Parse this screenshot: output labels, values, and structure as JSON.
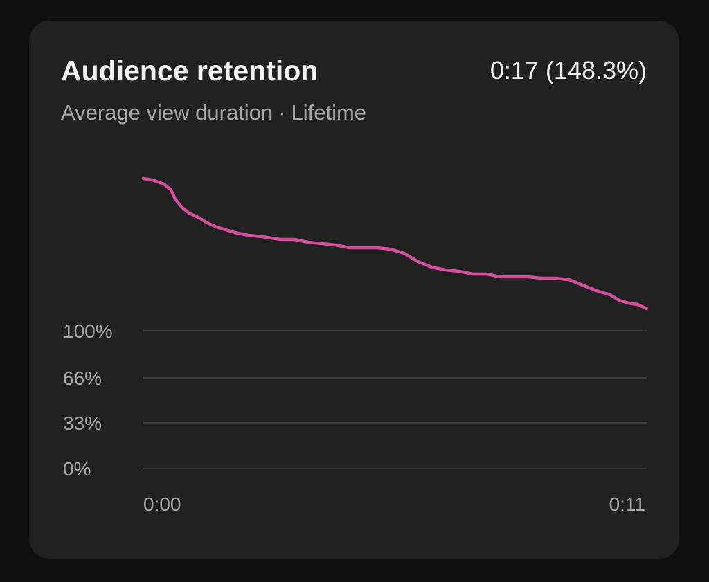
{
  "header": {
    "title": "Audience retention",
    "metric": "0:17 (148.3%)",
    "subtitle_metric": "Average view duration",
    "subtitle_separator": "·",
    "subtitle_period": "Lifetime"
  },
  "colors": {
    "line": "#d44f9e",
    "grid": "#3d3d3d",
    "card": "#212121",
    "background": "#0f0f0f"
  },
  "chart_data": {
    "type": "line",
    "title": "Audience retention",
    "ylabel": "",
    "xlabel": "",
    "y_ticks": [
      {
        "label": "100%",
        "value": 100
      },
      {
        "label": "66%",
        "value": 66
      },
      {
        "label": "33%",
        "value": 33
      },
      {
        "label": "0%",
        "value": 0
      }
    ],
    "x_ticks": [
      {
        "label": "0:00",
        "value": 0
      },
      {
        "label": "0:11",
        "value": 11
      }
    ],
    "xlim": [
      0,
      11
    ],
    "ylim": [
      0,
      210
    ],
    "grid": true,
    "series": [
      {
        "x": [
          0,
          0.2,
          0.45,
          0.6,
          0.7,
          0.85,
          1.0,
          1.2,
          1.4,
          1.6,
          1.8,
          2.0,
          2.3,
          2.6,
          3.0,
          3.3,
          3.6,
          3.9,
          4.2,
          4.5,
          4.8,
          5.1,
          5.4,
          5.7,
          6.0,
          6.3,
          6.6,
          6.9,
          7.2,
          7.5,
          7.8,
          8.1,
          8.4,
          8.7,
          9.0,
          9.3,
          9.6,
          9.9,
          10.2,
          10.4,
          10.6,
          10.8,
          11.0
        ],
        "y": [
          210,
          209,
          206,
          202,
          195,
          189,
          185,
          182,
          178,
          175,
          173,
          171,
          169,
          168,
          166,
          166,
          164,
          163,
          162,
          160,
          160,
          160,
          159,
          156,
          150,
          146,
          144,
          143,
          141,
          141,
          139,
          139,
          139,
          138,
          138,
          137,
          133,
          129,
          126,
          122,
          120,
          119,
          116
        ]
      }
    ]
  }
}
